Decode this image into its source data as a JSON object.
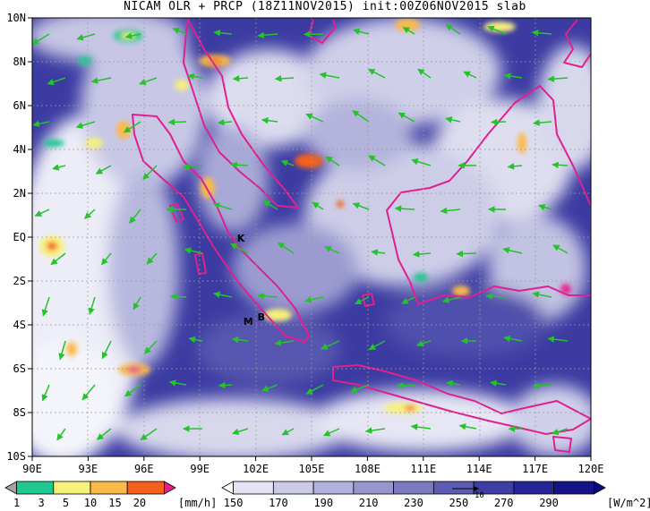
{
  "title": "NICAM OLR + PRCP (18Z11NOV2015) init:00Z06NOV2015 slab",
  "map": {
    "lon_ticks": [
      "90E",
      "93E",
      "96E",
      "99E",
      "102E",
      "105E",
      "108E",
      "111E",
      "114E",
      "117E",
      "120E"
    ],
    "lat_ticks": [
      "10N",
      "8N",
      "6N",
      "4N",
      "2N",
      "EQ",
      "2S",
      "4S",
      "6S",
      "8S",
      "10S"
    ],
    "lon_range": [
      90,
      120
    ],
    "lat_range": [
      -10,
      10
    ],
    "markers": [
      {
        "label": "K",
        "lon": 101.2,
        "lat": -0.2
      },
      {
        "label": "M",
        "lon": 101.6,
        "lat": -4.0
      },
      {
        "label": "B",
        "lon": 102.3,
        "lat": -3.8
      }
    ],
    "layers": [
      "OLR shading",
      "precipitation shading",
      "wind vectors",
      "coastlines"
    ],
    "coast_color": "#e0208f",
    "vector_color": "#22c42a"
  },
  "precip_bar": {
    "unit": "[mm/h]",
    "labels": [
      "1",
      "3",
      "5",
      "10",
      "15",
      "20"
    ],
    "colors": [
      "#a3a3a3",
      "#1ec890",
      "#f7f07a",
      "#fbb94a",
      "#f5611d",
      "#e3208c"
    ]
  },
  "olr_bar": {
    "unit": "[W/m^2]",
    "labels": [
      "150",
      "170",
      "190",
      "210",
      "230",
      "250",
      "270",
      "290"
    ],
    "colors": [
      "#ffffff",
      "#e3e3f3",
      "#cbcbe7",
      "#b1b1db",
      "#9797cf",
      "#7b7bc2",
      "#5c5cb3",
      "#3e3ea4",
      "#252595",
      "#141488",
      "#0a0a80"
    ]
  },
  "reference_vector_label": "10"
}
